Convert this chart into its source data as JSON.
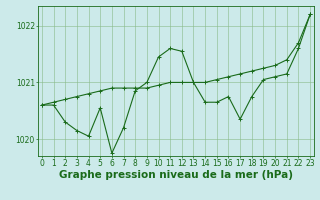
{
  "x_values": [
    0,
    1,
    2,
    3,
    4,
    5,
    6,
    7,
    8,
    9,
    10,
    11,
    12,
    13,
    14,
    15,
    16,
    17,
    18,
    19,
    20,
    21,
    22,
    23
  ],
  "y_detail": [
    1020.6,
    1020.6,
    1020.3,
    1020.15,
    1020.05,
    1020.55,
    1019.75,
    1020.2,
    1020.85,
    1021.0,
    1021.45,
    1021.6,
    1021.55,
    1021.0,
    1020.65,
    1020.65,
    1020.75,
    1020.35,
    1020.75,
    1021.05,
    1021.1,
    1021.15,
    1021.6,
    1022.2
  ],
  "y_smooth": [
    1020.6,
    1020.65,
    1020.7,
    1020.75,
    1020.8,
    1020.85,
    1020.9,
    1020.9,
    1020.9,
    1020.9,
    1020.95,
    1021.0,
    1021.0,
    1021.0,
    1021.0,
    1021.05,
    1021.1,
    1021.15,
    1021.2,
    1021.25,
    1021.3,
    1021.4,
    1021.7,
    1022.2
  ],
  "ylim": [
    1019.7,
    1022.35
  ],
  "yticks": [
    1020,
    1021,
    1022
  ],
  "xticks": [
    0,
    1,
    2,
    3,
    4,
    5,
    6,
    7,
    8,
    9,
    10,
    11,
    12,
    13,
    14,
    15,
    16,
    17,
    18,
    19,
    20,
    21,
    22,
    23
  ],
  "line_color": "#1a6b1a",
  "bg_color": "#cceaea",
  "grid_color": "#88bb88",
  "xlabel": "Graphe pression niveau de la mer (hPa)",
  "tick_fontsize": 5.5,
  "label_fontsize": 7.5,
  "marker": "+"
}
